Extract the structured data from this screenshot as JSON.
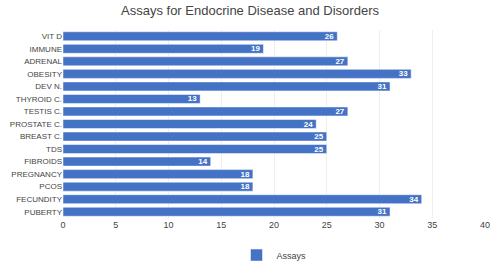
{
  "chart_data": {
    "type": "bar",
    "orientation": "horizontal",
    "title": "Assays for Endocrine Disease and Disorders",
    "categories": [
      "VIT D",
      "IMMUNE",
      "ADRENAL",
      "OBESITY",
      "DEV N.",
      "THYROID C.",
      "TESTIS C.",
      "PROSTATE C.",
      "BREAST C.",
      "TDS",
      "FIBROIDS",
      "PREGNANCY",
      "PCOS",
      "FECUNDITY",
      "PUBERTY"
    ],
    "series": [
      {
        "name": "Assays",
        "color": "#4472c4",
        "values": [
          26,
          19,
          27,
          33,
          31,
          13,
          27,
          24,
          25,
          25,
          14,
          18,
          18,
          34,
          31
        ]
      }
    ],
    "xlim": [
      0,
      40
    ],
    "xticks": [
      0,
      5,
      10,
      15,
      20,
      25,
      30,
      35,
      40
    ],
    "grid": true,
    "data_labels": true,
    "legend": "bottom"
  }
}
